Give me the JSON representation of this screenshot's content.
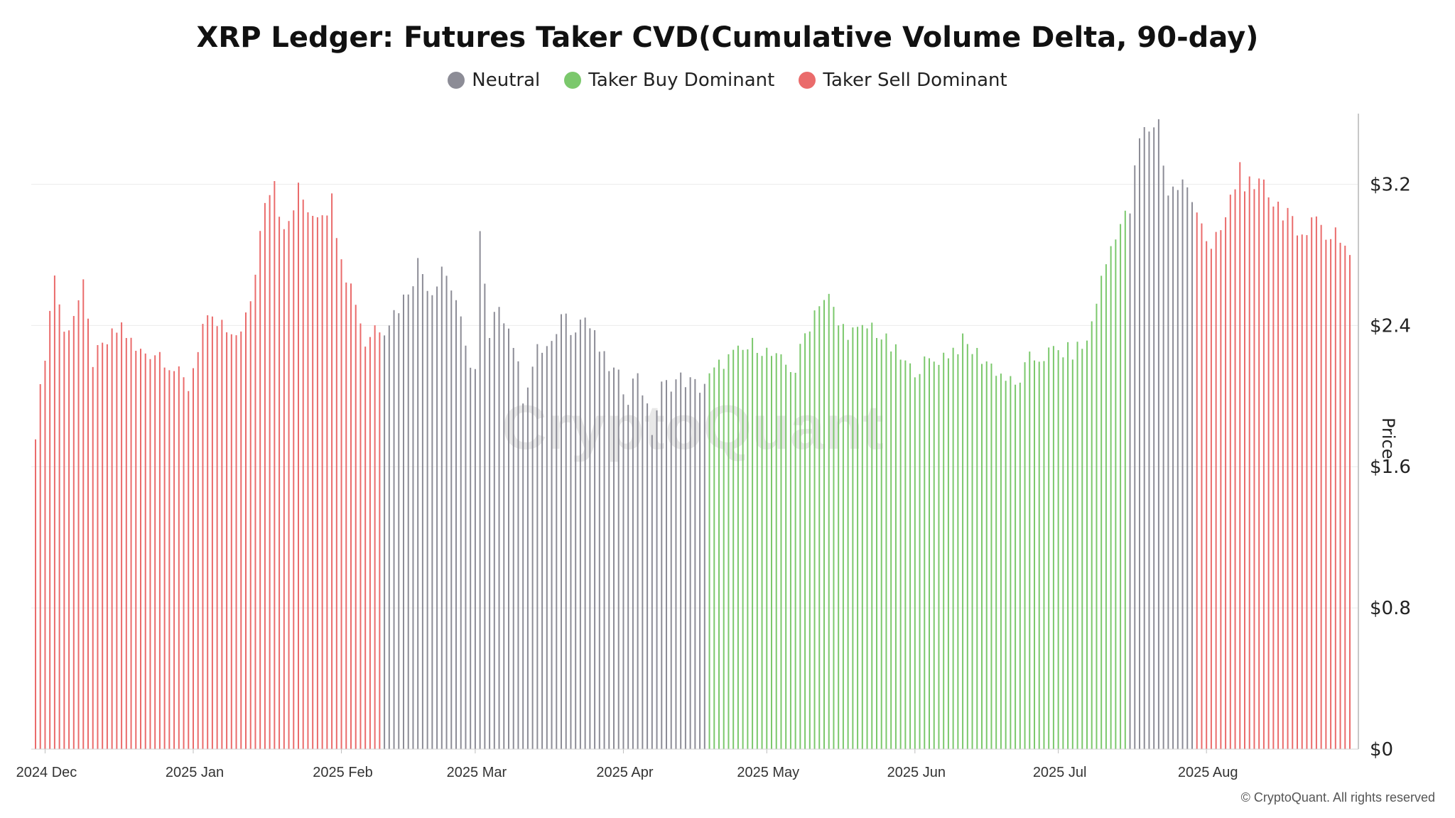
{
  "chart_data": {
    "type": "bar",
    "title": "XRP Ledger: Futures Taker CVD(Cumulative Volume Delta, 90-day)",
    "ylabel": "Price",
    "ylim": [
      0,
      3.6
    ],
    "yticks": [
      "$0",
      "$0.8",
      "$1.6",
      "$2.4",
      "$3.2"
    ],
    "ytick_values": [
      0,
      0.8,
      1.6,
      2.4,
      3.2
    ],
    "grid": "horizontal",
    "legend_position": "top-center",
    "x_start": "2024-11-29",
    "x_end": "2025-08-31",
    "xticks": [
      {
        "label": "2024 Dec",
        "date": "2024-12-01"
      },
      {
        "label": "2025 Jan",
        "date": "2025-01-01"
      },
      {
        "label": "2025 Feb",
        "date": "2025-02-01"
      },
      {
        "label": "2025 Mar",
        "date": "2025-03-01"
      },
      {
        "label": "2025 Apr",
        "date": "2025-04-01"
      },
      {
        "label": "2025 May",
        "date": "2025-05-01"
      },
      {
        "label": "2025 Jun",
        "date": "2025-06-01"
      },
      {
        "label": "2025 Jul",
        "date": "2025-07-01"
      },
      {
        "label": "2025 Aug",
        "date": "2025-08-01"
      }
    ],
    "series": [
      {
        "name": "Neutral",
        "color": "#8c8c96"
      },
      {
        "name": "Taker Buy Dominant",
        "color": "#7bc86c"
      },
      {
        "name": "Taker Sell Dominant",
        "color": "#ea6b6b"
      }
    ],
    "keypoints": [
      {
        "date": "2024-11-29",
        "price": 1.8,
        "regime": "Taker Sell Dominant"
      },
      {
        "date": "2024-12-03",
        "price": 2.7,
        "regime": "Taker Sell Dominant"
      },
      {
        "date": "2024-12-05",
        "price": 2.35,
        "regime": "Taker Sell Dominant"
      },
      {
        "date": "2024-12-09",
        "price": 2.6,
        "regime": "Taker Sell Dominant"
      },
      {
        "date": "2024-12-11",
        "price": 2.2,
        "regime": "Taker Sell Dominant"
      },
      {
        "date": "2024-12-17",
        "price": 2.4,
        "regime": "Taker Sell Dominant"
      },
      {
        "date": "2024-12-20",
        "price": 2.25,
        "regime": "Taker Sell Dominant"
      },
      {
        "date": "2024-12-25",
        "price": 2.25,
        "regime": "Taker Sell Dominant"
      },
      {
        "date": "2024-12-31",
        "price": 2.05,
        "regime": "Taker Sell Dominant"
      },
      {
        "date": "2025-01-03",
        "price": 2.4,
        "regime": "Taker Sell Dominant"
      },
      {
        "date": "2025-01-07",
        "price": 2.4,
        "regime": "Taker Sell Dominant"
      },
      {
        "date": "2025-01-09",
        "price": 2.3,
        "regime": "Taker Sell Dominant"
      },
      {
        "date": "2025-01-13",
        "price": 2.5,
        "regime": "Taker Sell Dominant"
      },
      {
        "date": "2025-01-16",
        "price": 3.15,
        "regime": "Taker Sell Dominant"
      },
      {
        "date": "2025-01-18",
        "price": 3.25,
        "regime": "Taker Sell Dominant"
      },
      {
        "date": "2025-01-20",
        "price": 2.9,
        "regime": "Taker Sell Dominant"
      },
      {
        "date": "2025-01-23",
        "price": 3.15,
        "regime": "Taker Sell Dominant"
      },
      {
        "date": "2025-01-26",
        "price": 3.05,
        "regime": "Taker Sell Dominant"
      },
      {
        "date": "2025-01-30",
        "price": 3.1,
        "regime": "Taker Sell Dominant"
      },
      {
        "date": "2025-02-02",
        "price": 2.7,
        "regime": "Taker Sell Dominant"
      },
      {
        "date": "2025-02-04",
        "price": 2.55,
        "regime": "Taker Sell Dominant"
      },
      {
        "date": "2025-02-06",
        "price": 2.3,
        "regime": "Taker Sell Dominant"
      },
      {
        "date": "2025-02-08",
        "price": 2.4,
        "regime": "Taker Sell Dominant"
      },
      {
        "date": "2025-02-10",
        "price": 2.4,
        "regime": "Neutral"
      },
      {
        "date": "2025-02-14",
        "price": 2.55,
        "regime": "Neutral"
      },
      {
        "date": "2025-02-17",
        "price": 2.75,
        "regime": "Neutral"
      },
      {
        "date": "2025-02-20",
        "price": 2.6,
        "regime": "Neutral"
      },
      {
        "date": "2025-02-22",
        "price": 2.75,
        "regime": "Neutral"
      },
      {
        "date": "2025-02-25",
        "price": 2.55,
        "regime": "Neutral"
      },
      {
        "date": "2025-02-27",
        "price": 2.25,
        "regime": "Neutral"
      },
      {
        "date": "2025-03-01",
        "price": 2.15,
        "regime": "Neutral"
      },
      {
        "date": "2025-03-02",
        "price": 2.9,
        "regime": "Neutral"
      },
      {
        "date": "2025-03-04",
        "price": 2.3,
        "regime": "Neutral"
      },
      {
        "date": "2025-03-06",
        "price": 2.55,
        "regime": "Neutral"
      },
      {
        "date": "2025-03-09",
        "price": 2.3,
        "regime": "Neutral"
      },
      {
        "date": "2025-03-11",
        "price": 2.0,
        "regime": "Neutral"
      },
      {
        "date": "2025-03-14",
        "price": 2.25,
        "regime": "Neutral"
      },
      {
        "date": "2025-03-18",
        "price": 2.3,
        "regime": "Neutral"
      },
      {
        "date": "2025-03-19",
        "price": 2.5,
        "regime": "Neutral"
      },
      {
        "date": "2025-03-21",
        "price": 2.4,
        "regime": "Neutral"
      },
      {
        "date": "2025-03-24",
        "price": 2.45,
        "regime": "Neutral"
      },
      {
        "date": "2025-03-28",
        "price": 2.2,
        "regime": "Neutral"
      },
      {
        "date": "2025-03-31",
        "price": 2.1,
        "regime": "Neutral"
      },
      {
        "date": "2025-04-02",
        "price": 2.0,
        "regime": "Neutral"
      },
      {
        "date": "2025-04-04",
        "price": 2.15,
        "regime": "Neutral"
      },
      {
        "date": "2025-04-07",
        "price": 1.8,
        "regime": "Neutral"
      },
      {
        "date": "2025-04-09",
        "price": 2.05,
        "regime": "Neutral"
      },
      {
        "date": "2025-04-13",
        "price": 2.1,
        "regime": "Neutral"
      },
      {
        "date": "2025-04-17",
        "price": 2.05,
        "regime": "Neutral"
      },
      {
        "date": "2025-04-19",
        "price": 2.1,
        "regime": "Taker Buy Dominant"
      },
      {
        "date": "2025-04-22",
        "price": 2.2,
        "regime": "Taker Buy Dominant"
      },
      {
        "date": "2025-04-26",
        "price": 2.25,
        "regime": "Taker Buy Dominant"
      },
      {
        "date": "2025-04-29",
        "price": 2.3,
        "regime": "Taker Buy Dominant"
      },
      {
        "date": "2025-05-03",
        "price": 2.2,
        "regime": "Taker Buy Dominant"
      },
      {
        "date": "2025-05-07",
        "price": 2.15,
        "regime": "Taker Buy Dominant"
      },
      {
        "date": "2025-05-09",
        "price": 2.35,
        "regime": "Taker Buy Dominant"
      },
      {
        "date": "2025-05-12",
        "price": 2.55,
        "regime": "Taker Buy Dominant"
      },
      {
        "date": "2025-05-14",
        "price": 2.55,
        "regime": "Taker Buy Dominant"
      },
      {
        "date": "2025-05-16",
        "price": 2.4,
        "regime": "Taker Buy Dominant"
      },
      {
        "date": "2025-05-20",
        "price": 2.35,
        "regime": "Taker Buy Dominant"
      },
      {
        "date": "2025-05-23",
        "price": 2.4,
        "regime": "Taker Buy Dominant"
      },
      {
        "date": "2025-05-26",
        "price": 2.3,
        "regime": "Taker Buy Dominant"
      },
      {
        "date": "2025-05-31",
        "price": 2.15,
        "regime": "Taker Buy Dominant"
      },
      {
        "date": "2025-06-05",
        "price": 2.2,
        "regime": "Taker Buy Dominant"
      },
      {
        "date": "2025-06-08",
        "price": 2.25,
        "regime": "Taker Buy Dominant"
      },
      {
        "date": "2025-06-11",
        "price": 2.3,
        "regime": "Taker Buy Dominant"
      },
      {
        "date": "2025-06-16",
        "price": 2.2,
        "regime": "Taker Buy Dominant"
      },
      {
        "date": "2025-06-22",
        "price": 2.05,
        "regime": "Taker Buy Dominant"
      },
      {
        "date": "2025-06-25",
        "price": 2.2,
        "regime": "Taker Buy Dominant"
      },
      {
        "date": "2025-06-30",
        "price": 2.25,
        "regime": "Taker Buy Dominant"
      },
      {
        "date": "2025-07-04",
        "price": 2.25,
        "regime": "Taker Buy Dominant"
      },
      {
        "date": "2025-07-07",
        "price": 2.3,
        "regime": "Taker Buy Dominant"
      },
      {
        "date": "2025-07-09",
        "price": 2.55,
        "regime": "Taker Buy Dominant"
      },
      {
        "date": "2025-07-11",
        "price": 2.75,
        "regime": "Taker Buy Dominant"
      },
      {
        "date": "2025-07-13",
        "price": 2.95,
        "regime": "Taker Buy Dominant"
      },
      {
        "date": "2025-07-15",
        "price": 3.0,
        "regime": "Taker Buy Dominant"
      },
      {
        "date": "2025-07-16",
        "price": 3.05,
        "regime": "Neutral"
      },
      {
        "date": "2025-07-18",
        "price": 3.45,
        "regime": "Neutral"
      },
      {
        "date": "2025-07-21",
        "price": 3.55,
        "regime": "Neutral"
      },
      {
        "date": "2025-07-22",
        "price": 3.55,
        "regime": "Neutral"
      },
      {
        "date": "2025-07-24",
        "price": 3.15,
        "regime": "Neutral"
      },
      {
        "date": "2025-07-27",
        "price": 3.2,
        "regime": "Neutral"
      },
      {
        "date": "2025-07-29",
        "price": 3.1,
        "regime": "Neutral"
      },
      {
        "date": "2025-07-30",
        "price": 3.1,
        "regime": "Taker Sell Dominant"
      },
      {
        "date": "2025-08-02",
        "price": 2.8,
        "regime": "Taker Sell Dominant"
      },
      {
        "date": "2025-08-05",
        "price": 3.0,
        "regime": "Taker Sell Dominant"
      },
      {
        "date": "2025-08-08",
        "price": 3.3,
        "regime": "Taker Sell Dominant"
      },
      {
        "date": "2025-08-11",
        "price": 3.1,
        "regime": "Taker Sell Dominant"
      },
      {
        "date": "2025-08-13",
        "price": 3.25,
        "regime": "Taker Sell Dominant"
      },
      {
        "date": "2025-08-15",
        "price": 3.1,
        "regime": "Taker Sell Dominant"
      },
      {
        "date": "2025-08-18",
        "price": 3.05,
        "regime": "Taker Sell Dominant"
      },
      {
        "date": "2025-08-20",
        "price": 2.85,
        "regime": "Taker Sell Dominant"
      },
      {
        "date": "2025-08-23",
        "price": 3.05,
        "regime": "Taker Sell Dominant"
      },
      {
        "date": "2025-08-26",
        "price": 2.9,
        "regime": "Taker Sell Dominant"
      },
      {
        "date": "2025-08-28",
        "price": 2.95,
        "regime": "Taker Sell Dominant"
      },
      {
        "date": "2025-08-31",
        "price": 2.8,
        "regime": "Taker Sell Dominant"
      }
    ],
    "watermark": "CryptoQuant",
    "copyright": "© CryptoQuant. All rights reserved"
  }
}
